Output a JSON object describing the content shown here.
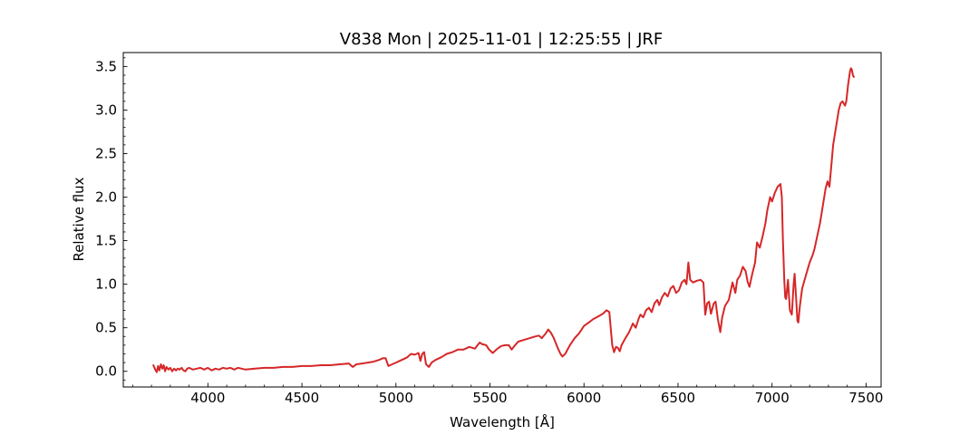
{
  "chart_data": {
    "type": "line",
    "title": "V838 Mon | 2025-11-01 | 12:25:55 | JRF",
    "xlabel": "Wavelength [Å]",
    "ylabel": "Relative flux",
    "xlim": [
      3550,
      7580
    ],
    "ylim": [
      -0.18,
      3.66
    ],
    "x_ticks": [
      4000,
      4500,
      5000,
      5500,
      6000,
      6500,
      7000,
      7500
    ],
    "x_tick_labels": [
      "4000",
      "4500",
      "5000",
      "5500",
      "6000",
      "6500",
      "7000",
      "7500"
    ],
    "y_ticks": [
      0.0,
      0.5,
      1.0,
      1.5,
      2.0,
      2.5,
      3.0,
      3.5
    ],
    "y_tick_labels": [
      "0.0",
      "0.5",
      "1.0",
      "1.5",
      "2.0",
      "2.5",
      "3.0",
      "3.5"
    ],
    "x_minor_step": 100,
    "y_minor_step": 0.1,
    "tick_direction": "in",
    "grid": false,
    "legend": "none",
    "series": [
      {
        "color": "#d62728",
        "points": [
          [
            3710,
            0.07
          ],
          [
            3720,
            0.02
          ],
          [
            3728,
            -0.01
          ],
          [
            3735,
            0.06
          ],
          [
            3742,
            0.01
          ],
          [
            3750,
            0.08
          ],
          [
            3758,
            0.03
          ],
          [
            3765,
            0.07
          ],
          [
            3772,
            0.0
          ],
          [
            3780,
            0.05
          ],
          [
            3790,
            0.02
          ],
          [
            3800,
            0.04
          ],
          [
            3810,
            0.0
          ],
          [
            3820,
            0.03
          ],
          [
            3830,
            0.01
          ],
          [
            3840,
            0.03
          ],
          [
            3850,
            0.02
          ],
          [
            3860,
            0.04
          ],
          [
            3870,
            0.01
          ],
          [
            3880,
            0.0
          ],
          [
            3890,
            0.03
          ],
          [
            3900,
            0.04
          ],
          [
            3920,
            0.02
          ],
          [
            3940,
            0.03
          ],
          [
            3960,
            0.04
          ],
          [
            3980,
            0.02
          ],
          [
            4000,
            0.04
          ],
          [
            4020,
            0.01
          ],
          [
            4040,
            0.03
          ],
          [
            4060,
            0.02
          ],
          [
            4080,
            0.04
          ],
          [
            4100,
            0.03
          ],
          [
            4120,
            0.04
          ],
          [
            4140,
            0.02
          ],
          [
            4160,
            0.04
          ],
          [
            4180,
            0.03
          ],
          [
            4200,
            0.02
          ],
          [
            4250,
            0.03
          ],
          [
            4300,
            0.04
          ],
          [
            4350,
            0.04
          ],
          [
            4400,
            0.05
          ],
          [
            4450,
            0.05
          ],
          [
            4500,
            0.06
          ],
          [
            4550,
            0.06
          ],
          [
            4600,
            0.07
          ],
          [
            4650,
            0.07
          ],
          [
            4700,
            0.08
          ],
          [
            4750,
            0.09
          ],
          [
            4770,
            0.05
          ],
          [
            4790,
            0.08
          ],
          [
            4820,
            0.09
          ],
          [
            4850,
            0.1
          ],
          [
            4880,
            0.11
          ],
          [
            4910,
            0.13
          ],
          [
            4930,
            0.15
          ],
          [
            4945,
            0.15
          ],
          [
            4960,
            0.06
          ],
          [
            4980,
            0.08
          ],
          [
            5000,
            0.1
          ],
          [
            5020,
            0.12
          ],
          [
            5040,
            0.14
          ],
          [
            5060,
            0.16
          ],
          [
            5080,
            0.2
          ],
          [
            5100,
            0.19
          ],
          [
            5120,
            0.21
          ],
          [
            5130,
            0.12
          ],
          [
            5140,
            0.2
          ],
          [
            5150,
            0.22
          ],
          [
            5160,
            0.08
          ],
          [
            5175,
            0.05
          ],
          [
            5190,
            0.1
          ],
          [
            5210,
            0.13
          ],
          [
            5240,
            0.16
          ],
          [
            5270,
            0.2
          ],
          [
            5300,
            0.22
          ],
          [
            5330,
            0.25
          ],
          [
            5360,
            0.25
          ],
          [
            5390,
            0.28
          ],
          [
            5420,
            0.26
          ],
          [
            5445,
            0.33
          ],
          [
            5460,
            0.31
          ],
          [
            5480,
            0.3
          ],
          [
            5495,
            0.25
          ],
          [
            5515,
            0.21
          ],
          [
            5540,
            0.26
          ],
          [
            5560,
            0.29
          ],
          [
            5580,
            0.3
          ],
          [
            5600,
            0.3
          ],
          [
            5615,
            0.25
          ],
          [
            5630,
            0.29
          ],
          [
            5650,
            0.34
          ],
          [
            5680,
            0.36
          ],
          [
            5710,
            0.38
          ],
          [
            5740,
            0.4
          ],
          [
            5760,
            0.41
          ],
          [
            5775,
            0.38
          ],
          [
            5795,
            0.43
          ],
          [
            5810,
            0.48
          ],
          [
            5825,
            0.44
          ],
          [
            5840,
            0.38
          ],
          [
            5860,
            0.27
          ],
          [
            5875,
            0.2
          ],
          [
            5885,
            0.17
          ],
          [
            5900,
            0.2
          ],
          [
            5925,
            0.3
          ],
          [
            5950,
            0.38
          ],
          [
            5975,
            0.44
          ],
          [
            6000,
            0.52
          ],
          [
            6025,
            0.56
          ],
          [
            6050,
            0.6
          ],
          [
            6075,
            0.63
          ],
          [
            6100,
            0.66
          ],
          [
            6120,
            0.7
          ],
          [
            6135,
            0.68
          ],
          [
            6150,
            0.3
          ],
          [
            6160,
            0.22
          ],
          [
            6170,
            0.28
          ],
          [
            6180,
            0.27
          ],
          [
            6190,
            0.23
          ],
          [
            6200,
            0.3
          ],
          [
            6220,
            0.38
          ],
          [
            6240,
            0.45
          ],
          [
            6260,
            0.55
          ],
          [
            6275,
            0.5
          ],
          [
            6290,
            0.6
          ],
          [
            6300,
            0.65
          ],
          [
            6315,
            0.62
          ],
          [
            6330,
            0.7
          ],
          [
            6345,
            0.73
          ],
          [
            6360,
            0.68
          ],
          [
            6375,
            0.78
          ],
          [
            6390,
            0.82
          ],
          [
            6400,
            0.76
          ],
          [
            6415,
            0.85
          ],
          [
            6430,
            0.9
          ],
          [
            6445,
            0.86
          ],
          [
            6460,
            0.95
          ],
          [
            6475,
            0.98
          ],
          [
            6490,
            0.9
          ],
          [
            6505,
            0.93
          ],
          [
            6520,
            1.02
          ],
          [
            6535,
            1.05
          ],
          [
            6545,
            1.0
          ],
          [
            6555,
            1.25
          ],
          [
            6565,
            1.05
          ],
          [
            6580,
            1.02
          ],
          [
            6600,
            1.04
          ],
          [
            6620,
            1.05
          ],
          [
            6635,
            1.02
          ],
          [
            6645,
            0.65
          ],
          [
            6655,
            0.78
          ],
          [
            6665,
            0.8
          ],
          [
            6675,
            0.66
          ],
          [
            6690,
            0.78
          ],
          [
            6700,
            0.8
          ],
          [
            6712,
            0.6
          ],
          [
            6725,
            0.45
          ],
          [
            6735,
            0.62
          ],
          [
            6750,
            0.75
          ],
          [
            6770,
            0.82
          ],
          [
            6790,
            1.02
          ],
          [
            6805,
            0.9
          ],
          [
            6815,
            1.05
          ],
          [
            6830,
            1.1
          ],
          [
            6845,
            1.2
          ],
          [
            6860,
            1.15
          ],
          [
            6870,
            1.03
          ],
          [
            6880,
            0.97
          ],
          [
            6895,
            1.12
          ],
          [
            6910,
            1.25
          ],
          [
            6920,
            1.48
          ],
          [
            6935,
            1.42
          ],
          [
            6950,
            1.55
          ],
          [
            6965,
            1.7
          ],
          [
            6975,
            1.85
          ],
          [
            6990,
            2.0
          ],
          [
            7000,
            1.95
          ],
          [
            7015,
            2.05
          ],
          [
            7030,
            2.12
          ],
          [
            7045,
            2.15
          ],
          [
            7052,
            2.0
          ],
          [
            7058,
            1.5
          ],
          [
            7065,
            1.05
          ],
          [
            7070,
            0.85
          ],
          [
            7075,
            0.83
          ],
          [
            7085,
            1.05
          ],
          [
            7095,
            0.7
          ],
          [
            7105,
            0.65
          ],
          [
            7115,
            1.0
          ],
          [
            7120,
            1.12
          ],
          [
            7128,
            0.85
          ],
          [
            7135,
            0.58
          ],
          [
            7140,
            0.56
          ],
          [
            7148,
            0.75
          ],
          [
            7160,
            0.95
          ],
          [
            7180,
            1.1
          ],
          [
            7200,
            1.25
          ],
          [
            7215,
            1.33
          ],
          [
            7225,
            1.4
          ],
          [
            7240,
            1.55
          ],
          [
            7255,
            1.7
          ],
          [
            7270,
            1.9
          ],
          [
            7285,
            2.1
          ],
          [
            7295,
            2.18
          ],
          [
            7305,
            2.12
          ],
          [
            7315,
            2.35
          ],
          [
            7325,
            2.6
          ],
          [
            7340,
            2.8
          ],
          [
            7355,
            3.0
          ],
          [
            7365,
            3.08
          ],
          [
            7375,
            3.1
          ],
          [
            7380,
            3.08
          ],
          [
            7388,
            3.05
          ],
          [
            7395,
            3.1
          ],
          [
            7405,
            3.3
          ],
          [
            7415,
            3.45
          ],
          [
            7420,
            3.48
          ],
          [
            7425,
            3.46
          ],
          [
            7430,
            3.4
          ],
          [
            7435,
            3.38
          ]
        ]
      }
    ]
  }
}
